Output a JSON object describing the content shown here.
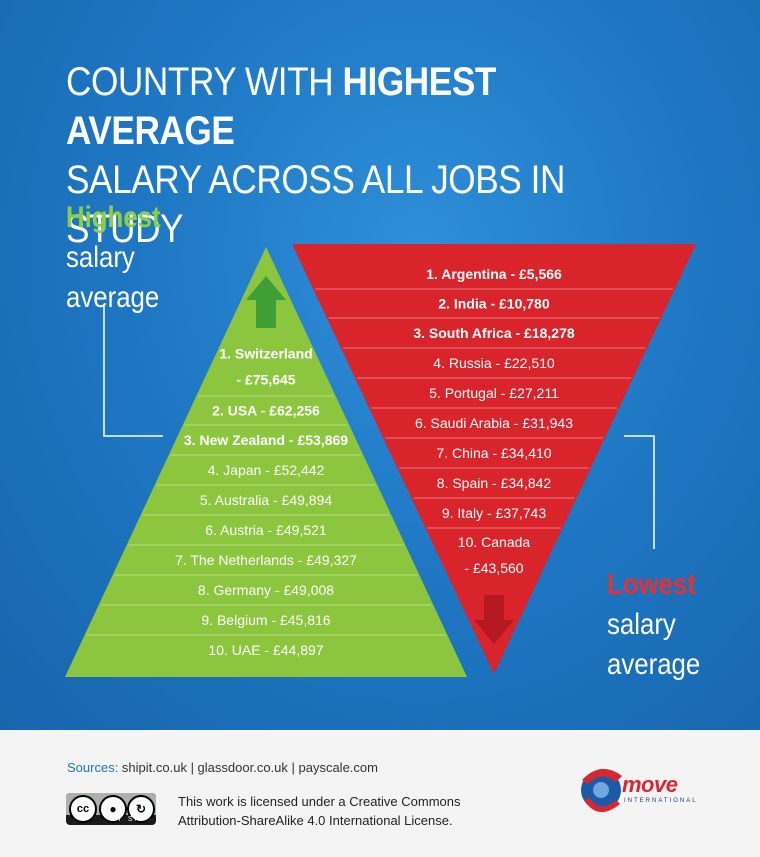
{
  "title": {
    "line1_regular": "COUNTRY WITH ",
    "line1_bold": "HIGHEST AVERAGE",
    "line2": "SALARY ACROSS ALL JOBS IN STUDY"
  },
  "highest_label": {
    "accent": "Highest",
    "line2": "salary",
    "line3": "average"
  },
  "lowest_label": {
    "accent": "Lowest",
    "line2": "salary",
    "line3": "average"
  },
  "colors": {
    "background_blue": "#1f78c4",
    "highest_green": "#8cc63f",
    "lowest_red": "#d9242c",
    "accent_green_text": "#8ed043",
    "accent_red_text": "#e03237"
  },
  "chart_data": [
    {
      "type": "table",
      "name": "Highest salary average",
      "rows": [
        {
          "rank": 1,
          "country": "Switzerland",
          "label": [
            "1. Switzerland",
            "- £75,645"
          ],
          "value": 75645
        },
        {
          "rank": 2,
          "country": "USA",
          "label": [
            "2. USA - £62,256"
          ],
          "value": 62256
        },
        {
          "rank": 3,
          "country": "New Zealand",
          "label": [
            "3. New Zealand - £53,869"
          ],
          "value": 53869
        },
        {
          "rank": 4,
          "country": "Japan",
          "label": [
            "4. Japan - £52,442"
          ],
          "value": 52442
        },
        {
          "rank": 5,
          "country": "Australia",
          "label": [
            "5. Australia - £49,894"
          ],
          "value": 49894
        },
        {
          "rank": 6,
          "country": "Austria",
          "label": [
            "6. Austria - £49,521"
          ],
          "value": 49521
        },
        {
          "rank": 7,
          "country": "The Netherlands",
          "label": [
            "7. The Netherlands - £49,327"
          ],
          "value": 49327
        },
        {
          "rank": 8,
          "country": "Germany",
          "label": [
            "8. Germany - £49,008"
          ],
          "value": 49008
        },
        {
          "rank": 9,
          "country": "Belgium",
          "label": [
            "9. Belgium - £45,816"
          ],
          "value": 45816
        },
        {
          "rank": 10,
          "country": "UAE",
          "label": [
            "10. UAE - £44,897"
          ],
          "value": 44897
        }
      ]
    },
    {
      "type": "table",
      "name": "Lowest salary average",
      "rows": [
        {
          "rank": 1,
          "country": "Argentina",
          "label": [
            "1. Argentina - £5,566"
          ],
          "value": 5566
        },
        {
          "rank": 2,
          "country": "India",
          "label": [
            "2. India - £10,780"
          ],
          "value": 10780
        },
        {
          "rank": 3,
          "country": "South Africa",
          "label": [
            "3. South Africa - £18,278"
          ],
          "value": 18278
        },
        {
          "rank": 4,
          "country": "Russia",
          "label": [
            "4. Russia - £22,510"
          ],
          "value": 22510
        },
        {
          "rank": 5,
          "country": "Portugal",
          "label": [
            "5. Portugal - £27,211"
          ],
          "value": 27211
        },
        {
          "rank": 6,
          "country": "Saudi Arabia",
          "label": [
            "6. Saudi Arabia - £31,943"
          ],
          "value": 31943
        },
        {
          "rank": 7,
          "country": "China",
          "label": [
            "7. China - £34,410"
          ],
          "value": 34410
        },
        {
          "rank": 8,
          "country": "Spain",
          "label": [
            "8. Spain - £34,842"
          ],
          "value": 34842
        },
        {
          "rank": 9,
          "country": "Italy",
          "label": [
            "9. Italy - £37,743"
          ],
          "value": 37743
        },
        {
          "rank": 10,
          "country": "Canada",
          "label": [
            "10. Canada",
            "- £43,560"
          ],
          "value": 43560
        }
      ]
    }
  ],
  "footer": {
    "sources_label": "Sources:",
    "sources_text": " shipit.co.uk | glassdoor.co.uk | payscale.com",
    "cc_badge": {
      "cc": "cc",
      "by": "BY",
      "sa": "SA"
    },
    "license_line1": "This work is licensed under a Creative Commons",
    "license_line2": "Attribution-ShareAlike 4.0 International License.",
    "logo_text": "move",
    "logo_subtext": "INTERNATIONAL"
  }
}
